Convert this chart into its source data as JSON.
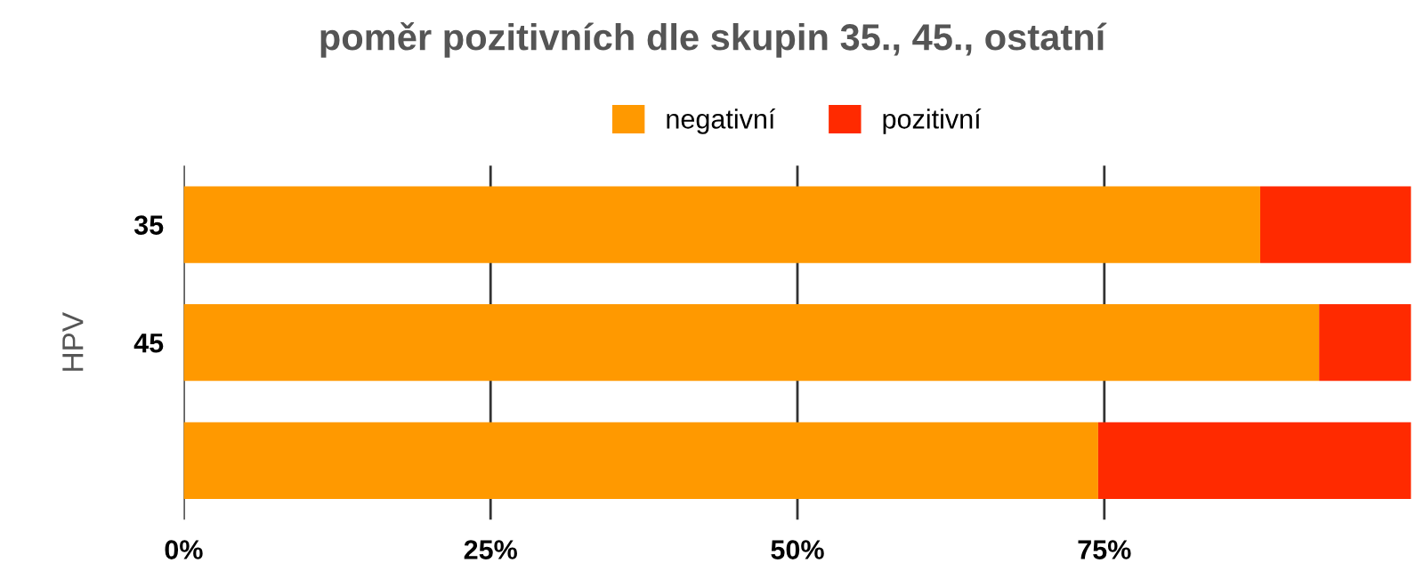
{
  "chart_data": {
    "type": "bar",
    "orientation": "horizontal",
    "stacked": true,
    "title": "poměr pozitivních dle skupin 35., 45., ostatní",
    "ylabel": "HPV",
    "categories": [
      "35",
      "45",
      null
    ],
    "series": [
      {
        "name": "negativní",
        "color": "#ff9900",
        "values": [
          87.7,
          92.5,
          74.5
        ]
      },
      {
        "name": "pozitivní",
        "color": "#ff2a00",
        "values": [
          12.3,
          7.5,
          25.5
        ]
      }
    ],
    "xlim": [
      0,
      100
    ],
    "xticks": [
      {
        "value": 0,
        "label": "0%"
      },
      {
        "value": 25,
        "label": "25%"
      },
      {
        "value": 50,
        "label": "50%"
      },
      {
        "value": 75,
        "label": "75%"
      }
    ],
    "grid": "x",
    "legend": "top"
  }
}
